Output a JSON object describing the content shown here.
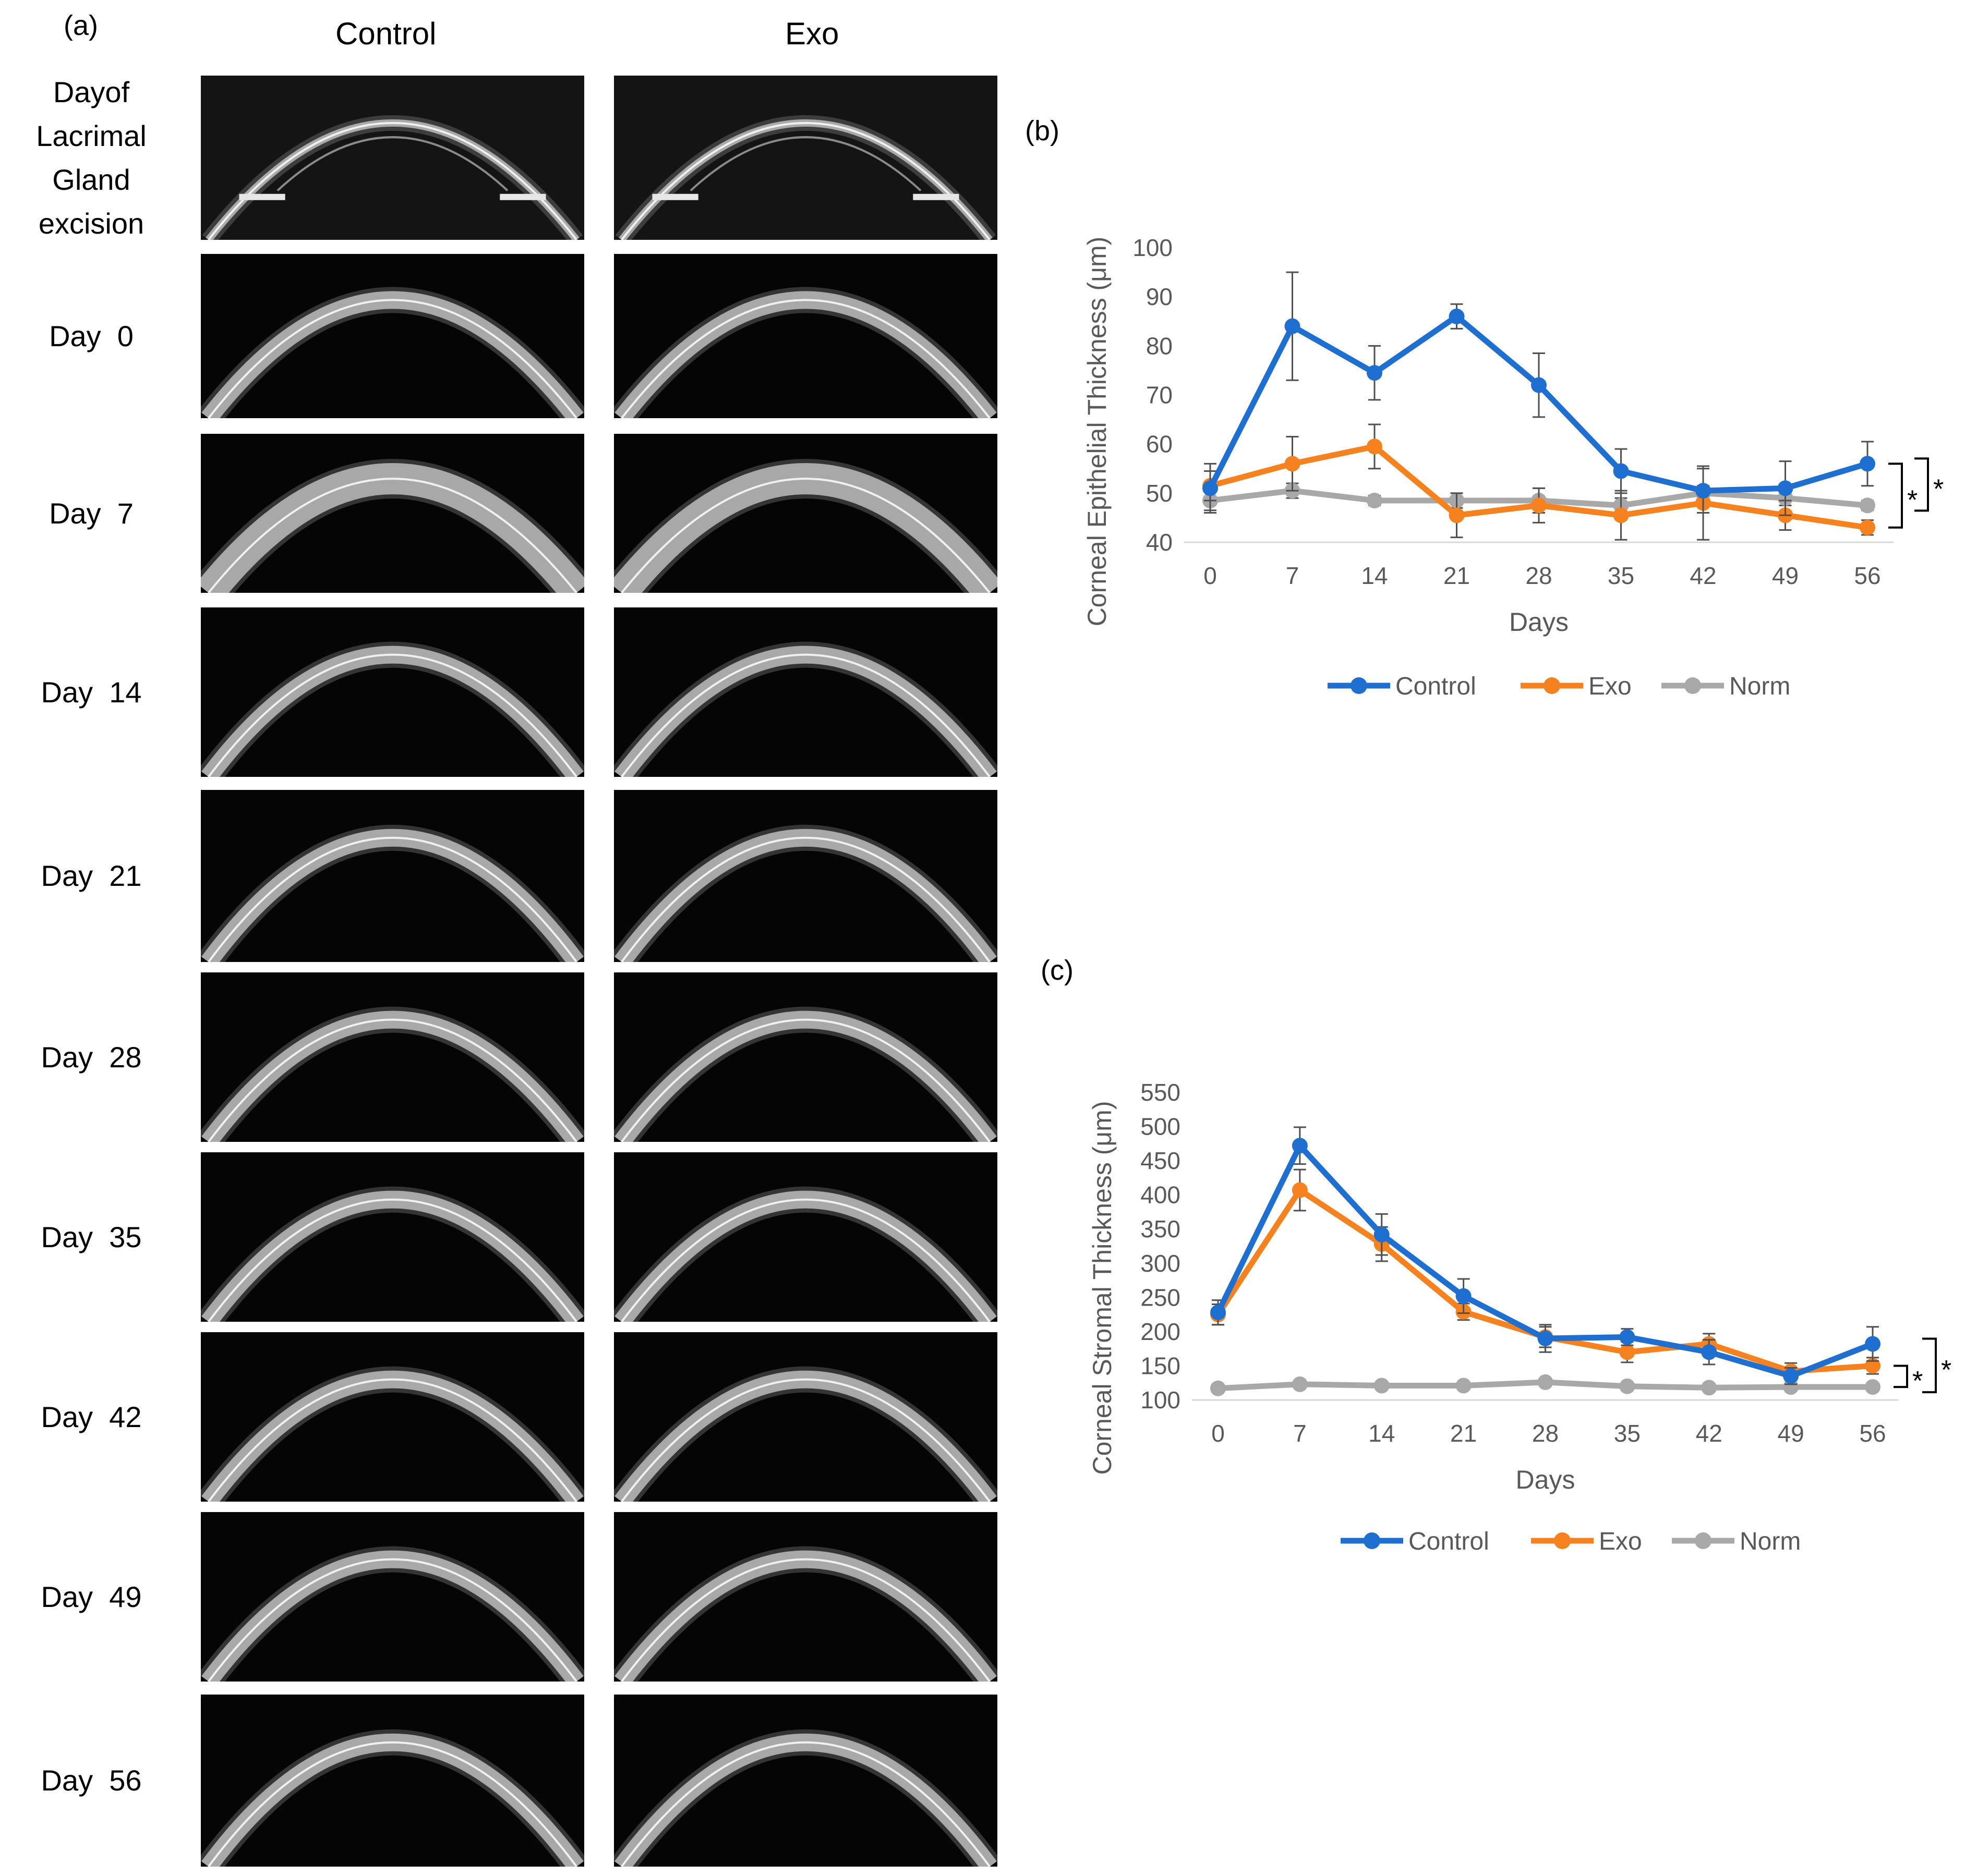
{
  "panel_a": {
    "label": "(a)",
    "columns": [
      "Control",
      "Exo"
    ],
    "rows": [
      {
        "label": "Dayof\nLacrimal\nGland\nexcision"
      },
      {
        "label": "Day  0"
      },
      {
        "label": "Day  7"
      },
      {
        "label": "Day  14"
      },
      {
        "label": "Day  21"
      },
      {
        "label": "Day  28"
      },
      {
        "label": "Day  35"
      },
      {
        "label": "Day  42"
      },
      {
        "label": "Day  49"
      },
      {
        "label": "Day  56"
      }
    ]
  },
  "panel_b": {
    "label": "(b)"
  },
  "panel_c": {
    "label": "(c)"
  },
  "colors": {
    "control": "#1f6fd1",
    "exo": "#f5821f",
    "norm": "#a8a8a8",
    "axis": "#d9d9d9",
    "tick": "#595959",
    "errbar": "#505050"
  },
  "chart_data": [
    {
      "id": "b",
      "type": "line",
      "title": "",
      "xlabel": "Days",
      "ylabel": "Corneal Epithelial Thickness (μm)",
      "x": [
        0,
        7,
        14,
        21,
        28,
        35,
        42,
        49,
        56
      ],
      "x_tick_labels": [
        "0",
        "7",
        "14",
        "21",
        "28",
        "35",
        "42",
        "49",
        "56"
      ],
      "ylim": [
        40,
        100
      ],
      "y_ticks": [
        40,
        50,
        60,
        70,
        80,
        90,
        100
      ],
      "y_tick_labels": [
        "40",
        "50",
        "60",
        "70",
        "80",
        "90",
        "100"
      ],
      "legend_position": "bottom",
      "series": [
        {
          "name": "Control",
          "color_key": "control",
          "values": [
            51,
            84,
            74.5,
            86,
            72,
            54.5,
            50.5,
            51,
            56
          ],
          "errors": [
            5,
            11,
            5.5,
            2.5,
            6.5,
            4.5,
            4.5,
            5.5,
            4.5
          ]
        },
        {
          "name": "Exo",
          "color_key": "exo",
          "values": [
            51.5,
            56,
            59.5,
            45.5,
            47.5,
            45.5,
            48,
            45.5,
            43
          ],
          "errors": [
            3,
            5.5,
            4.5,
            4.5,
            3.5,
            5,
            7.5,
            3,
            1.5
          ]
        },
        {
          "name": "Norm",
          "color_key": "norm",
          "values": [
            48.5,
            50.5,
            48.5,
            48.5,
            48.5,
            47.5,
            50,
            49,
            47.5
          ],
          "errors": [
            2,
            1.5,
            1,
            1.5,
            2.5,
            1.5,
            1.5,
            1.5,
            1
          ]
        }
      ],
      "annotations": [
        {
          "text": "*",
          "between": [
            "Control",
            "Exo"
          ],
          "at_x": 56
        },
        {
          "text": "*",
          "between": [
            "Control",
            "Norm"
          ],
          "at_x": 56
        }
      ]
    },
    {
      "id": "c",
      "type": "line",
      "title": "",
      "xlabel": "Days",
      "ylabel": "Corneal Stromal Thickness (μm)",
      "x": [
        0,
        7,
        14,
        21,
        28,
        35,
        42,
        49,
        56
      ],
      "x_tick_labels": [
        "0",
        "7",
        "14",
        "21",
        "28",
        "35",
        "42",
        "49",
        "56"
      ],
      "ylim": [
        100,
        550
      ],
      "y_ticks": [
        100,
        150,
        200,
        250,
        300,
        350,
        400,
        450,
        500,
        550
      ],
      "y_tick_labels": [
        "100",
        "150",
        "200",
        "250",
        "300",
        "350",
        "400",
        "450",
        "500",
        "550"
      ],
      "legend_position": "bottom",
      "series": [
        {
          "name": "Control",
          "color_key": "control",
          "values": [
            228,
            472,
            342,
            252,
            190,
            192,
            170,
            135,
            182
          ],
          "errors": [
            18,
            27,
            30,
            25,
            20,
            12,
            18,
            12,
            25
          ]
        },
        {
          "name": "Exo",
          "color_key": "exo",
          "values": [
            225,
            407,
            328,
            229,
            192,
            170,
            182,
            142,
            150
          ],
          "errors": [
            15,
            30,
            25,
            12,
            15,
            15,
            15,
            12,
            12
          ]
        },
        {
          "name": "Norm",
          "color_key": "norm",
          "values": [
            117,
            123,
            121,
            121,
            126,
            120,
            118,
            119,
            119
          ],
          "errors": [
            6,
            6,
            5,
            5,
            5,
            5,
            5,
            5,
            5
          ]
        }
      ],
      "annotations": [
        {
          "text": "*",
          "between": [
            "Exo",
            "Norm"
          ],
          "at_x": 56
        },
        {
          "text": "*",
          "between": [
            "Control",
            "Norm"
          ],
          "at_x": 56
        }
      ]
    }
  ]
}
